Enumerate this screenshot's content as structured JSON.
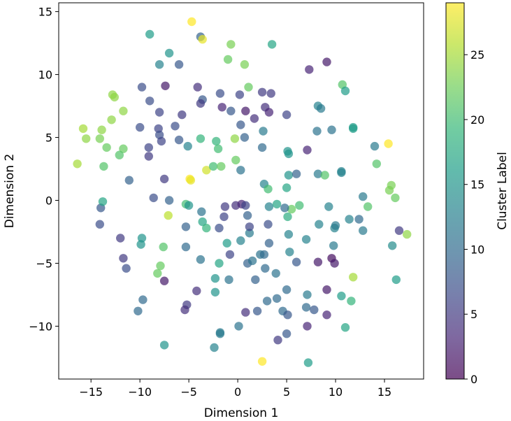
{
  "chart_data": {
    "type": "scatter",
    "title": "",
    "xlabel": "Dimension 1",
    "ylabel": "Dimension 2",
    "colorbar_label": "Cluster Label",
    "xlim": [
      -18.3,
      19.0
    ],
    "ylim": [
      -14.2,
      15.7
    ],
    "clim": [
      0,
      29
    ],
    "xticks": [
      -15,
      -10,
      -5,
      0,
      5,
      10,
      15
    ],
    "xtick_labels": [
      "−15",
      "−10",
      "−5",
      "0",
      "5",
      "10",
      "15"
    ],
    "yticks": [
      -10,
      -5,
      0,
      5,
      10,
      15
    ],
    "ytick_labels": [
      "−10",
      "−5",
      "0",
      "5",
      "10",
      "15"
    ],
    "colorbar_ticks": [
      0,
      5,
      10,
      15,
      20,
      25
    ],
    "colorbar_tick_labels": [
      "0",
      "5",
      "10",
      "15",
      "20",
      "25"
    ],
    "colormap": [
      "#440154",
      "#482878",
      "#3e4989",
      "#31688e",
      "#26828e",
      "#1f9e89",
      "#35b779",
      "#6ece58",
      "#b5de2b",
      "#fde725"
    ],
    "marker_alpha": 0.7,
    "points": [
      [
        -4.7,
        14.2,
        29
      ],
      [
        -3.8,
        13.0,
        9
      ],
      [
        -3.6,
        12.8,
        28
      ],
      [
        -9.0,
        13.2,
        16
      ],
      [
        -7.0,
        11.7,
        15
      ],
      [
        -1.0,
        11.2,
        22
      ],
      [
        -0.7,
        12.4,
        23
      ],
      [
        3.5,
        12.4,
        17
      ],
      [
        0.7,
        10.8,
        23
      ],
      [
        -6.0,
        10.8,
        8
      ],
      [
        -8.0,
        10.8,
        13
      ],
      [
        -9.8,
        9.0,
        7
      ],
      [
        -7.4,
        9.1,
        2
      ],
      [
        -4.1,
        9.0,
        4
      ],
      [
        -1.8,
        8.5,
        7
      ],
      [
        0.2,
        8.4,
        6
      ],
      [
        1.1,
        9.0,
        22
      ],
      [
        2.5,
        8.6,
        5
      ],
      [
        3.4,
        8.5,
        5
      ],
      [
        -3.6,
        8.0,
        8
      ],
      [
        -9.0,
        7.9,
        7
      ],
      [
        -3.8,
        7.7,
        5
      ],
      [
        -1.6,
        7.4,
        3
      ],
      [
        -0.7,
        7.1,
        8
      ],
      [
        0.8,
        7.1,
        2
      ],
      [
        1.7,
        6.5,
        4
      ],
      [
        2.8,
        7.4,
        4
      ],
      [
        3.2,
        7.0,
        3
      ],
      [
        5.0,
        6.8,
        6
      ],
      [
        -8.0,
        7.0,
        6
      ],
      [
        -5.7,
        6.8,
        5
      ],
      [
        7.3,
        10.4,
        3
      ],
      [
        9.1,
        11.0,
        2
      ],
      [
        10.7,
        9.2,
        21
      ],
      [
        11.0,
        8.7,
        16
      ],
      [
        8.2,
        7.5,
        13
      ],
      [
        8.5,
        7.3,
        12
      ],
      [
        -12.8,
        8.4,
        24
      ],
      [
        -12.6,
        8.2,
        24
      ],
      [
        -11.7,
        7.1,
        24
      ],
      [
        -12.9,
        6.4,
        24
      ],
      [
        -15.8,
        5.7,
        25
      ],
      [
        -13.9,
        5.6,
        24
      ],
      [
        -15.5,
        4.9,
        24
      ],
      [
        -14.1,
        4.9,
        23
      ],
      [
        -13.4,
        4.2,
        22
      ],
      [
        -11.7,
        4.1,
        22
      ],
      [
        -12.1,
        3.6,
        21
      ],
      [
        -16.4,
        2.9,
        25
      ],
      [
        -13.7,
        2.7,
        21
      ],
      [
        -10.0,
        5.8,
        7
      ],
      [
        -8.1,
        5.7,
        6
      ],
      [
        -6.4,
        5.9,
        7
      ],
      [
        -8.0,
        5.2,
        7
      ],
      [
        -9.1,
        4.2,
        6
      ],
      [
        -7.8,
        4.7,
        6
      ],
      [
        -6.0,
        4.8,
        8
      ],
      [
        -9.1,
        3.5,
        5
      ],
      [
        -5.1,
        4.3,
        13
      ],
      [
        -3.8,
        4.9,
        19
      ],
      [
        -2.2,
        4.7,
        19
      ],
      [
        -0.3,
        4.9,
        24
      ],
      [
        2.5,
        4.2,
        10
      ],
      [
        2.6,
        5.5,
        12
      ],
      [
        0.7,
        5.0,
        9
      ],
      [
        -2.0,
        4.1,
        20
      ],
      [
        0.3,
        6.0,
        8
      ],
      [
        5.1,
        3.9,
        15
      ],
      [
        5.2,
        3.7,
        15
      ],
      [
        8.1,
        5.5,
        11
      ],
      [
        9.6,
        5.6,
        11
      ],
      [
        11.8,
        5.8,
        16
      ],
      [
        11.8,
        5.7,
        16
      ],
      [
        7.1,
        4.0,
        3
      ],
      [
        14.0,
        4.3,
        12
      ],
      [
        15.4,
        4.5,
        29
      ],
      [
        14.2,
        2.9,
        21
      ],
      [
        -7.5,
        1.7,
        5
      ],
      [
        -11.1,
        1.6,
        9
      ],
      [
        -4.9,
        1.7,
        29
      ],
      [
        -4.8,
        1.6,
        28
      ],
      [
        -3.2,
        2.4,
        27
      ],
      [
        -2.5,
        2.7,
        20
      ],
      [
        -1.7,
        2.7,
        22
      ],
      [
        -0.2,
        3.2,
        22
      ],
      [
        0.3,
        2.4,
        11
      ],
      [
        2.7,
        1.3,
        13
      ],
      [
        3.1,
        0.9,
        20
      ],
      [
        5.0,
        1.0,
        17
      ],
      [
        5.2,
        2.0,
        15
      ],
      [
        6.0,
        2.1,
        9
      ],
      [
        8.2,
        2.1,
        12
      ],
      [
        8.9,
        2.0,
        21
      ],
      [
        10.6,
        2.3,
        13
      ],
      [
        10.6,
        2.2,
        13
      ],
      [
        15.5,
        0.8,
        23
      ],
      [
        15.7,
        1.2,
        23
      ],
      [
        16.1,
        0.2,
        22
      ],
      [
        12.8,
        0.3,
        12
      ],
      [
        13.3,
        -0.5,
        21
      ],
      [
        -14.0,
        -0.6,
        8
      ],
      [
        -13.8,
        -0.1,
        17
      ],
      [
        -14.1,
        -1.9,
        7
      ],
      [
        -8.6,
        0.2,
        7
      ],
      [
        -7.1,
        -1.2,
        26
      ],
      [
        -7.0,
        0.0,
        9
      ],
      [
        -5.3,
        -0.3,
        20
      ],
      [
        -5.0,
        -0.4,
        15
      ],
      [
        -3.7,
        -0.9,
        11
      ],
      [
        -3.6,
        -1.7,
        17
      ],
      [
        -1.3,
        -0.5,
        5
      ],
      [
        -1.4,
        -1.3,
        6
      ],
      [
        -0.2,
        -0.4,
        4
      ],
      [
        0.4,
        -0.3,
        3
      ],
      [
        0.8,
        -0.4,
        6
      ],
      [
        1.0,
        -1.2,
        9
      ],
      [
        3.2,
        -0.5,
        13
      ],
      [
        4.0,
        -0.3,
        17
      ],
      [
        5.1,
        -1.3,
        18
      ],
      [
        5.5,
        -0.7,
        22
      ],
      [
        6.3,
        -0.4,
        20
      ],
      [
        4.8,
        -0.6,
        10
      ],
      [
        9.3,
        -0.5,
        13
      ],
      [
        9.9,
        -2.2,
        13
      ],
      [
        10.0,
        -2.0,
        12
      ],
      [
        11.4,
        -1.5,
        13
      ],
      [
        12.4,
        -1.5,
        10
      ],
      [
        12.8,
        -2.4,
        12
      ],
      [
        16.5,
        -2.4,
        5
      ],
      [
        17.3,
        -2.7,
        24
      ],
      [
        -12.0,
        -3.0,
        5
      ],
      [
        -9.9,
        -3.5,
        15
      ],
      [
        -9.8,
        -3.0,
        15
      ],
      [
        -7.6,
        -3.7,
        21
      ],
      [
        -5.3,
        -2.1,
        9
      ],
      [
        -3.2,
        -2.2,
        19
      ],
      [
        -5.3,
        -3.7,
        10
      ],
      [
        -3.8,
        -4.7,
        11
      ],
      [
        -1.9,
        -2.2,
        7
      ],
      [
        -1.1,
        -3.4,
        16
      ],
      [
        0.3,
        -3.2,
        13
      ],
      [
        1.2,
        -2.6,
        12
      ],
      [
        1.2,
        -2.1,
        6
      ],
      [
        3.1,
        -1.9,
        7
      ],
      [
        3.2,
        -3.4,
        9
      ],
      [
        2.3,
        -4.3,
        11
      ],
      [
        2.7,
        -4.3,
        10
      ],
      [
        5.2,
        -2.7,
        13
      ],
      [
        7.0,
        -3.1,
        13
      ],
      [
        8.3,
        -1.9,
        13
      ],
      [
        9.8,
        -3.6,
        12
      ],
      [
        9.6,
        -4.6,
        1
      ],
      [
        9.9,
        -5.0,
        2
      ],
      [
        5.3,
        -4.1,
        13
      ],
      [
        6.0,
        -4.9,
        8
      ],
      [
        8.2,
        -4.9,
        2
      ],
      [
        15.8,
        -3.6,
        14
      ],
      [
        -11.7,
        -4.6,
        5
      ],
      [
        -11.4,
        -5.4,
        7
      ],
      [
        -7.9,
        -5.2,
        22
      ],
      [
        -7.5,
        -6.4,
        2
      ],
      [
        -8.2,
        -5.8,
        22
      ],
      [
        -4.2,
        -7.2,
        4
      ],
      [
        -1.9,
        -5.0,
        17
      ],
      [
        -0.8,
        -4.3,
        6
      ],
      [
        1.0,
        -5.0,
        9
      ],
      [
        1.5,
        -4.8,
        11
      ],
      [
        2.8,
        -5.4,
        10
      ],
      [
        3.9,
        -5.8,
        11
      ],
      [
        -2.3,
        -6.2,
        15
      ],
      [
        -0.9,
        -6.3,
        11
      ],
      [
        1.8,
        -6.3,
        9
      ],
      [
        5.0,
        -7.1,
        10
      ],
      [
        7.1,
        -7.5,
        12
      ],
      [
        9.1,
        -7.1,
        2
      ],
      [
        10.6,
        -7.6,
        16
      ],
      [
        11.6,
        -8.0,
        19
      ],
      [
        11.8,
        -6.1,
        25
      ],
      [
        16.2,
        -6.3,
        16
      ],
      [
        -9.7,
        -7.9,
        10
      ],
      [
        -10.2,
        -8.8,
        10
      ],
      [
        -5.2,
        -8.3,
        5
      ],
      [
        -5.4,
        -8.7,
        4
      ],
      [
        -2.3,
        -7.3,
        15
      ],
      [
        0.8,
        -8.9,
        4
      ],
      [
        2.0,
        -8.8,
        8
      ],
      [
        3.0,
        -8.0,
        10
      ],
      [
        4.0,
        -7.8,
        10
      ],
      [
        4.6,
        -8.8,
        10
      ],
      [
        5.1,
        -9.1,
        8
      ],
      [
        7.0,
        -8.5,
        10
      ],
      [
        7.8,
        -8.7,
        8
      ],
      [
        9.1,
        -9.1,
        3
      ],
      [
        -1.8,
        -10.5,
        12
      ],
      [
        -1.8,
        -10.6,
        12
      ],
      [
        0.1,
        -10.0,
        11
      ],
      [
        5.0,
        -10.6,
        8
      ],
      [
        7.1,
        -10.0,
        3
      ],
      [
        11.0,
        -10.1,
        17
      ],
      [
        4.1,
        -11.1,
        5
      ],
      [
        -7.5,
        -11.5,
        15
      ],
      [
        -2.4,
        -11.7,
        13
      ],
      [
        2.5,
        -12.8,
        29
      ],
      [
        7.2,
        -12.9,
        16
      ]
    ]
  }
}
